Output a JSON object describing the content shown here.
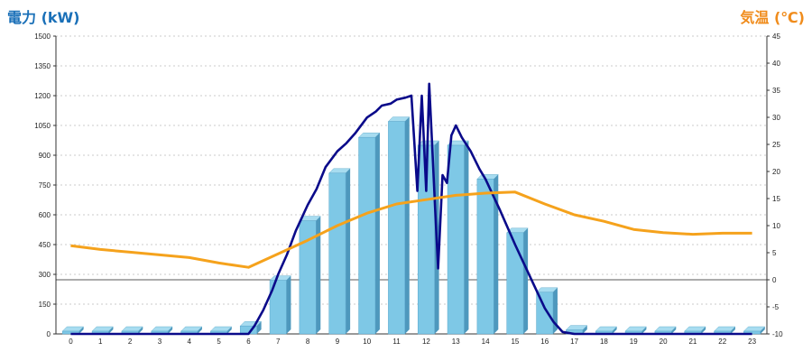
{
  "chart_data": {
    "type": "bar",
    "title": "",
    "y_left_label": "電力 (kW)",
    "y_right_label": "気温 (℃)",
    "y_left_ticks": [
      "1500",
      "1350",
      "1200",
      "1050",
      "900",
      "750",
      "600",
      "450",
      "300",
      "150",
      "0"
    ],
    "y_right_ticks": [
      "45",
      "40",
      "35",
      "30",
      "25",
      "20",
      "15",
      "10",
      "5",
      "0",
      "-5",
      "-10"
    ],
    "ylim_left": [
      0,
      1500
    ],
    "ylim_right": [
      -10,
      45
    ],
    "categories": [
      "0",
      "1",
      "2",
      "3",
      "4",
      "5",
      "6",
      "7",
      "8",
      "9",
      "10",
      "11",
      "12",
      "13",
      "14",
      "15",
      "16",
      "17",
      "18",
      "19",
      "20",
      "21",
      "22",
      "23"
    ],
    "series": [
      {
        "kind": "bar",
        "axis": "left",
        "color": "#7ec8e6",
        "values": [
          5,
          5,
          5,
          5,
          5,
          5,
          40,
          270,
          570,
          810,
          990,
          1070,
          950,
          950,
          780,
          510,
          210,
          20,
          5,
          5,
          5,
          5,
          5,
          5
        ]
      },
      {
        "kind": "line",
        "axis": "left",
        "color": "#0a0a8a",
        "x": [
          0,
          1,
          2,
          3,
          4,
          5,
          6,
          6.2,
          6.5,
          6.8,
          7,
          7.3,
          7.6,
          8,
          8.3,
          8.6,
          9,
          9.3,
          9.6,
          10,
          10.3,
          10.5,
          10.8,
          11,
          11.3,
          11.5,
          11.7,
          11.85,
          12,
          12.1,
          12.2,
          12.3,
          12.4,
          12.55,
          12.7,
          12.85,
          13,
          13.2,
          13.5,
          13.8,
          14,
          14.5,
          15,
          15.5,
          16,
          16.3,
          16.6,
          17,
          18,
          19,
          20,
          21,
          22,
          23
        ],
        "values": [
          0,
          0,
          0,
          0,
          0,
          0,
          0,
          40,
          120,
          220,
          300,
          400,
          520,
          650,
          730,
          840,
          920,
          960,
          1010,
          1090,
          1120,
          1150,
          1160,
          1180,
          1190,
          1200,
          720,
          1200,
          720,
          1260,
          950,
          630,
          330,
          800,
          760,
          1000,
          1050,
          990,
          920,
          830,
          780,
          620,
          450,
          290,
          130,
          60,
          10,
          0,
          0,
          0,
          0,
          0,
          0,
          0
        ]
      },
      {
        "kind": "line",
        "axis": "right",
        "color": "#f5a21c",
        "x": [
          0,
          1,
          2,
          3,
          4,
          5,
          6,
          7,
          8,
          9,
          10,
          11,
          12,
          13,
          14,
          15,
          16,
          17,
          18,
          19,
          20,
          21,
          22,
          23
        ],
        "values": [
          6.3,
          5.6,
          5.1,
          4.6,
          4.1,
          3.1,
          2.3,
          4.8,
          7.3,
          10.0,
          12.3,
          14.0,
          14.8,
          15.6,
          16.0,
          16.2,
          14.0,
          12.0,
          10.8,
          9.3,
          8.7,
          8.4,
          8.6,
          8.6
        ]
      }
    ],
    "grid": true,
    "grid_style": "dotted",
    "zero_reference_line": "right-axis 0"
  }
}
